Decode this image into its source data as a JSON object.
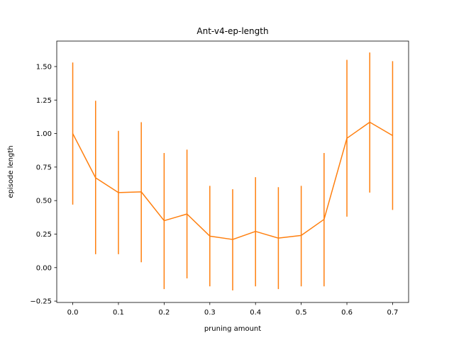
{
  "chart_data": {
    "type": "line",
    "title": "Ant-v4-ep-length",
    "xlabel": "pruning amount",
    "ylabel": "episode length",
    "xlim": [
      -0.035,
      0.735
    ],
    "ylim": [
      -0.26,
      1.69
    ],
    "x_ticks": [
      0.0,
      0.1,
      0.2,
      0.3,
      0.4,
      0.5,
      0.6,
      0.7
    ],
    "x_tick_labels": [
      "0.0",
      "0.1",
      "0.2",
      "0.3",
      "0.4",
      "0.5",
      "0.6",
      "0.7"
    ],
    "y_ticks": [
      -0.25,
      0.0,
      0.25,
      0.5,
      0.75,
      1.0,
      1.25,
      1.5
    ],
    "y_tick_labels": [
      "−0.25",
      "0.00",
      "0.25",
      "0.50",
      "0.75",
      "1.00",
      "1.25",
      "1.50"
    ],
    "grid": false,
    "series": [
      {
        "color": "#ff7f0e",
        "x": [
          0.0,
          0.05,
          0.1,
          0.15,
          0.2,
          0.25,
          0.3,
          0.35,
          0.4,
          0.45,
          0.5,
          0.55,
          0.6,
          0.65,
          0.7
        ],
        "y": [
          1.0,
          0.67,
          0.56,
          0.565,
          0.35,
          0.4,
          0.235,
          0.21,
          0.27,
          0.22,
          0.24,
          0.36,
          0.965,
          1.085,
          0.985
        ],
        "error_low": [
          0.47,
          0.1,
          0.1,
          0.04,
          -0.16,
          -0.08,
          -0.14,
          -0.17,
          -0.14,
          -0.16,
          -0.14,
          -0.14,
          0.38,
          0.56,
          0.43
        ],
        "error_high": [
          1.53,
          1.245,
          1.02,
          1.085,
          0.855,
          0.88,
          0.61,
          0.585,
          0.675,
          0.6,
          0.61,
          0.855,
          1.55,
          1.605,
          1.54
        ]
      }
    ]
  }
}
